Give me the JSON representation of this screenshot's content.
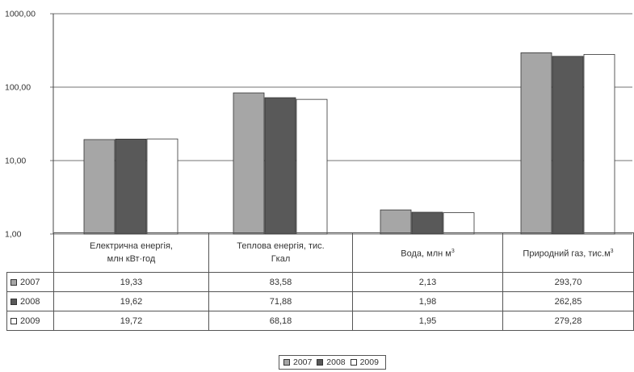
{
  "chart_data": {
    "type": "bar",
    "y_scale": "log",
    "ylim": [
      1,
      1000
    ],
    "y_ticks": [
      "1000,00",
      "100,00",
      "10,00",
      "1,00"
    ],
    "grid": true,
    "legend_position": "bottom-center",
    "categories": [
      {
        "line1": "Електрична енергія,",
        "line2": "млн кВт·год",
        "sup": ""
      },
      {
        "line1": "Теплова енергія, тис.",
        "line2": "Гкал",
        "sup": ""
      },
      {
        "line1": "Вода, млн м",
        "line2": "",
        "sup": "3"
      },
      {
        "line1": "Природний газ, тис.м",
        "line2": "",
        "sup": "3"
      }
    ],
    "series": [
      {
        "name": "2007",
        "color": "#a6a6a6",
        "values": [
          19.33,
          83.58,
          2.13,
          293.7
        ],
        "labels": [
          "19,33",
          "83,58",
          "2,13",
          "293,70"
        ]
      },
      {
        "name": "2008",
        "color": "#595959",
        "values": [
          19.62,
          71.88,
          1.98,
          262.85
        ],
        "labels": [
          "19,62",
          "71,88",
          "1,98",
          "262,85"
        ]
      },
      {
        "name": "2009",
        "color": "#ffffff",
        "values": [
          19.72,
          68.18,
          1.95,
          279.28
        ],
        "labels": [
          "19,72",
          "68,18",
          "1,95",
          "279,28"
        ]
      }
    ]
  }
}
